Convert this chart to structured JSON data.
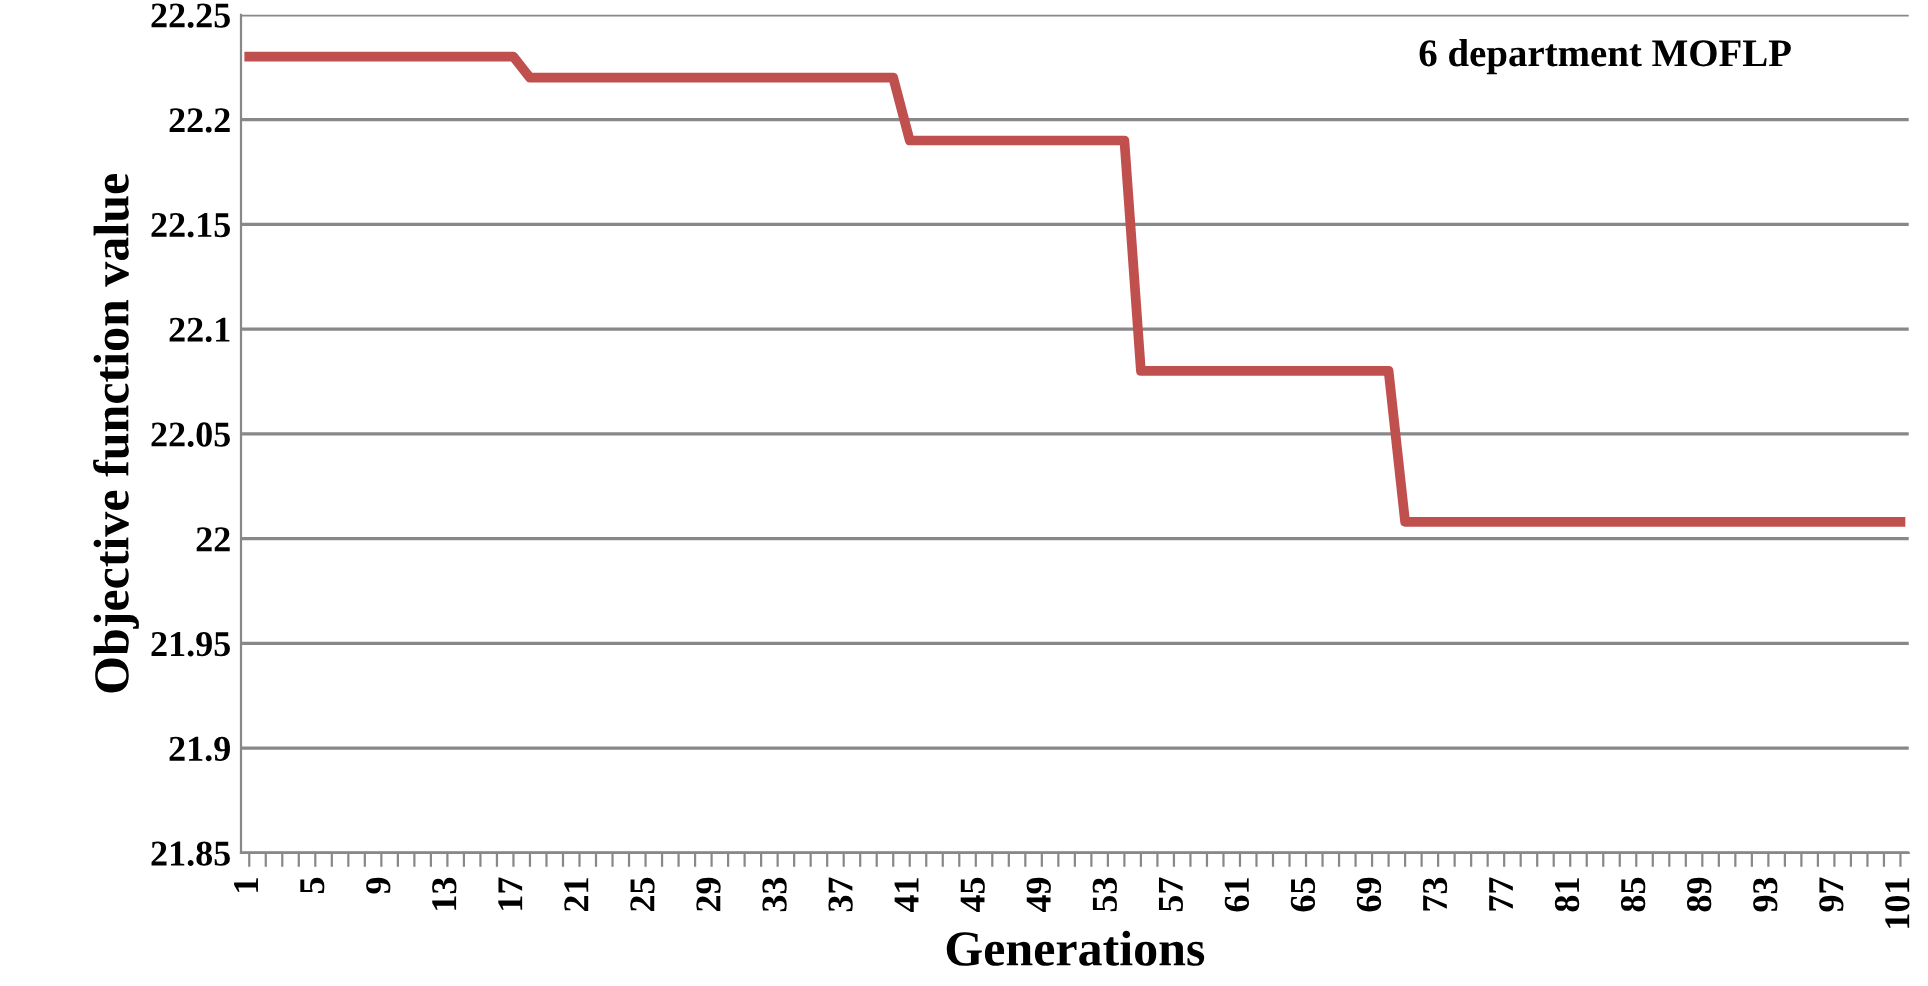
{
  "chart_data": {
    "type": "line",
    "xlabel": "Generations",
    "ylabel": "Objective function value",
    "annotations": [
      "6 department MOFLP"
    ],
    "categories": [
      "1",
      null,
      null,
      null,
      "5",
      null,
      null,
      null,
      "9",
      null,
      null,
      null,
      "13",
      null,
      null,
      null,
      "17",
      null,
      null,
      null,
      "21",
      null,
      null,
      null,
      "25",
      null,
      null,
      null,
      "29",
      null,
      null,
      null,
      "33",
      null,
      null,
      null,
      "37",
      null,
      null,
      null,
      "41",
      null,
      null,
      null,
      "45",
      null,
      null,
      null,
      "49",
      null,
      null,
      null,
      "53",
      null,
      null,
      null,
      "57",
      null,
      null,
      null,
      "61",
      null,
      null,
      null,
      "65",
      null,
      null,
      null,
      "69",
      null,
      null,
      null,
      "73",
      null,
      null,
      null,
      "77",
      null,
      null,
      null,
      "81",
      null,
      null,
      null,
      "85",
      null,
      null,
      null,
      "89",
      null,
      null,
      null,
      "93",
      null,
      null,
      null,
      "97",
      null,
      null,
      null,
      "101"
    ],
    "series": [
      {
        "color": "#c0504d",
        "values": [
          22.23,
          22.23,
          22.23,
          22.23,
          22.23,
          22.23,
          22.23,
          22.23,
          22.23,
          22.23,
          22.23,
          22.23,
          22.23,
          22.23,
          22.23,
          22.23,
          22.23,
          22.22,
          22.22,
          22.22,
          22.22,
          22.22,
          22.22,
          22.22,
          22.22,
          22.22,
          22.22,
          22.22,
          22.22,
          22.22,
          22.22,
          22.22,
          22.22,
          22.22,
          22.22,
          22.22,
          22.22,
          22.22,
          22.22,
          22.22,
          22.19,
          22.19,
          22.19,
          22.19,
          22.19,
          22.19,
          22.19,
          22.19,
          22.19,
          22.19,
          22.19,
          22.19,
          22.19,
          22.19,
          22.08,
          22.08,
          22.08,
          22.08,
          22.08,
          22.08,
          22.08,
          22.08,
          22.08,
          22.08,
          22.08,
          22.08,
          22.08,
          22.08,
          22.08,
          22.08,
          22.008,
          22.008,
          22.008,
          22.008,
          22.008,
          22.008,
          22.008,
          22.008,
          22.008,
          22.008,
          22.008,
          22.008,
          22.008,
          22.008,
          22.008,
          22.008,
          22.008,
          22.008,
          22.008,
          22.008,
          22.008,
          22.008,
          22.008,
          22.008,
          22.008,
          22.008,
          22.008,
          22.008,
          22.008,
          22.008,
          22.008
        ]
      }
    ],
    "ylim": [
      21.85,
      22.25
    ],
    "yticks": [
      21.85,
      21.9,
      21.95,
      22,
      22.05,
      22.1,
      22.15,
      22.2,
      22.25
    ],
    "grid": "y",
    "marker": "none",
    "line_style": "solid"
  }
}
